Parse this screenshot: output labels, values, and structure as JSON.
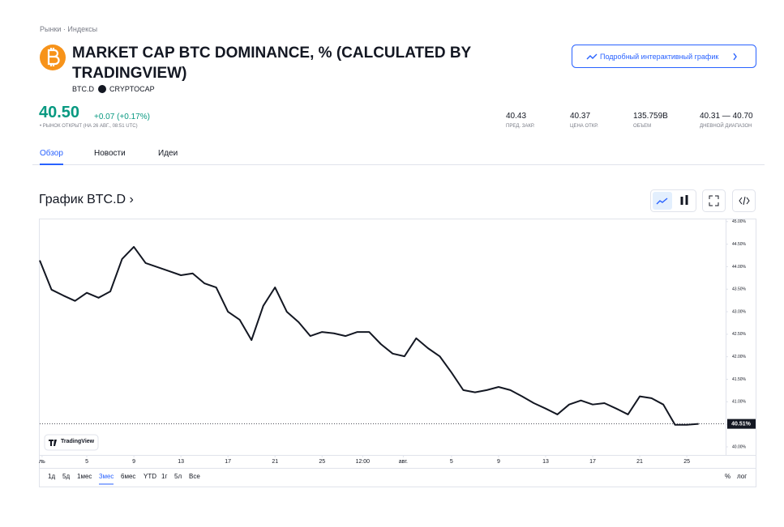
{
  "breadcrumb": "Рынки · Индексы",
  "header": {
    "title": "MARKET CAP BTC DOMINANCE, % (CALCULATED BY TRADINGVIEW)",
    "symbol": "BTC.D",
    "exchange": "CRYPTOCAP",
    "button": "Подробный интерактивный график"
  },
  "quote": {
    "price": "40.50",
    "change": "+0.07 (+0.17%)",
    "status": "• РЫНОК ОТКРЫТ (НА 26 АВГ., 08:51 UTC)"
  },
  "stats": [
    {
      "value": "40.43",
      "label": "ПРЕД. ЗАКР."
    },
    {
      "value": "40.37",
      "label": "ЦЕНА ОТКР."
    },
    {
      "value": "135.759B",
      "label": "ОБЪЕМ"
    },
    {
      "value": "40.31 — 40.70",
      "label": "ДНЕВНОЙ ДИАПАЗОН"
    }
  ],
  "tabs": [
    "Обзор",
    "Новости",
    "Идеи"
  ],
  "section_title": "График BTC.D ›",
  "ranges": [
    "1д",
    "5д",
    "1мес",
    "3мес",
    "6мес",
    "YTD",
    "1г",
    "5л",
    "Все"
  ],
  "axis_options": [
    "%",
    "лог"
  ],
  "watermark": "TradingView",
  "chart_data": {
    "type": "line",
    "color": "#131722",
    "x": [
      0,
      1,
      2,
      3,
      4,
      5,
      6,
      7,
      8,
      9,
      10,
      11,
      12,
      13,
      14,
      15,
      16,
      17,
      18,
      19,
      20,
      21,
      22,
      23,
      24,
      25,
      26,
      27,
      28,
      29,
      30,
      31,
      32,
      33,
      34,
      35,
      36,
      37,
      38,
      39,
      40,
      41,
      42,
      43,
      44,
      45,
      46,
      47,
      48,
      49,
      50,
      51,
      52,
      53,
      54,
      55,
      56
    ],
    "values": [
      44.14,
      43.49,
      43.36,
      43.24,
      43.42,
      43.31,
      43.45,
      44.17,
      44.44,
      44.08,
      43.99,
      43.9,
      43.81,
      43.85,
      43.63,
      43.54,
      43.0,
      42.82,
      42.37,
      43.13,
      43.54,
      43.0,
      42.77,
      42.46,
      42.55,
      42.52,
      42.46,
      42.55,
      42.55,
      42.28,
      42.07,
      42.01,
      42.41,
      42.19,
      42.01,
      41.65,
      41.26,
      41.21,
      41.26,
      41.33,
      41.26,
      41.12,
      40.97,
      40.85,
      40.72,
      40.94,
      41.03,
      40.94,
      40.97,
      40.85,
      40.72,
      41.12,
      41.08,
      40.94,
      40.49,
      40.49,
      40.51
    ],
    "value_labels": [
      null,
      null,
      null,
      null,
      null,
      null,
      null,
      null,
      null,
      null,
      null,
      null,
      null,
      null,
      null,
      null,
      null,
      null,
      null,
      null,
      null,
      null,
      null,
      null,
      null,
      null,
      null,
      null,
      null,
      null,
      null,
      null,
      null,
      null,
      null,
      null,
      null,
      null,
      null,
      null,
      null,
      null,
      null,
      null,
      null,
      null,
      null,
      null,
      null,
      null,
      null,
      null,
      null,
      null,
      null,
      null,
      "40.51%"
    ],
    "xlim": [
      0,
      58.3
    ],
    "xticks": [
      {
        "value": 0.2,
        "label": "ль"
      },
      {
        "value": 4,
        "label": "5"
      },
      {
        "value": 8,
        "label": "9"
      },
      {
        "value": 12,
        "label": "13"
      },
      {
        "value": 16,
        "label": "17"
      },
      {
        "value": 20,
        "label": "21"
      },
      {
        "value": 24,
        "label": "25"
      },
      {
        "value": 27.45,
        "label": "12:00"
      },
      {
        "value": 30.9,
        "label": "авг."
      },
      {
        "value": 35,
        "label": "5"
      },
      {
        "value": 39,
        "label": "9"
      },
      {
        "value": 43,
        "label": "13"
      },
      {
        "value": 47,
        "label": "17"
      },
      {
        "value": 51,
        "label": "21"
      },
      {
        "value": 55,
        "label": "25"
      }
    ],
    "ylim": [
      39.82,
      45.05
    ],
    "yticks": [
      {
        "value": 45,
        "label": "45.00%"
      },
      {
        "value": 44.5,
        "label": "44.50%"
      },
      {
        "value": 44,
        "label": "44.00%"
      },
      {
        "value": 43.5,
        "label": "43.50%"
      },
      {
        "value": 43,
        "label": "43.00%"
      },
      {
        "value": 42.5,
        "label": "42.50%"
      },
      {
        "value": 42,
        "label": "42.00%"
      },
      {
        "value": 41.5,
        "label": "41.50%"
      },
      {
        "value": 41,
        "label": "41.00%"
      },
      {
        "value": 40.5,
        "label": "40.50%"
      },
      {
        "value": 40,
        "label": "40.00%"
      }
    ]
  }
}
